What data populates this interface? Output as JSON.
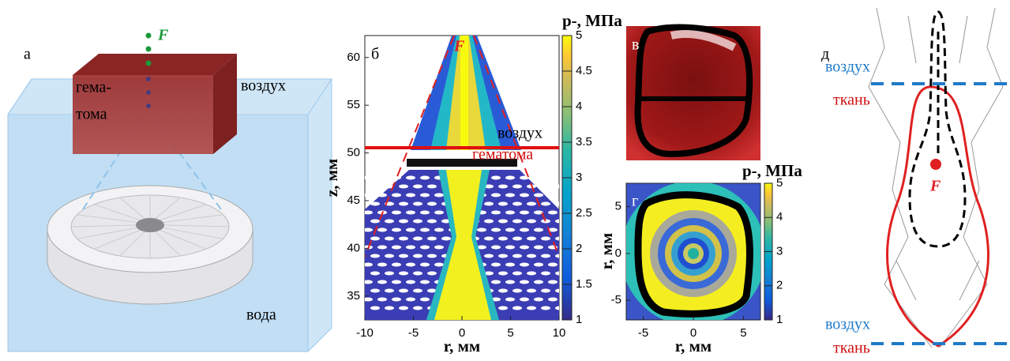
{
  "panel_a": {
    "label": "а",
    "focus": "F",
    "cube_label_line1": "гема-",
    "cube_label_line2": "тома",
    "air": "воздух",
    "water": "вода"
  },
  "panel_b": {
    "label": "б",
    "focus": "F",
    "air": "воздух",
    "hematoma": "гематома",
    "xlabel": "r, мм",
    "ylabel": "z, мм",
    "xlim": [
      -10,
      10
    ],
    "xticks": [
      -10,
      -5,
      0,
      5,
      10
    ],
    "ylim": [
      32.5,
      62.3
    ],
    "yticks": [
      35,
      40,
      45,
      50,
      55,
      60
    ],
    "colorbar": {
      "title": "p-, МПа",
      "lim": [
        1,
        5
      ],
      "ticks": [
        1,
        1.5,
        2,
        2.5,
        3,
        3.5,
        4,
        4.5,
        5
      ]
    }
  },
  "panel_v": {
    "label": "в"
  },
  "panel_g": {
    "label": "г",
    "xlabel": "r, мм",
    "ylabel": "r, мм",
    "xlim": [
      -6.7,
      6.7
    ],
    "xticks": [
      -5,
      0,
      5
    ],
    "ylim": [
      -7.1,
      7.5
    ],
    "yticks": [
      -5,
      0,
      5
    ],
    "colorbar": {
      "title": "p-, МПа",
      "lim": [
        1,
        5
      ],
      "ticks": [
        1,
        2,
        3,
        4,
        5
      ]
    }
  },
  "panel_d": {
    "label": "д",
    "air_top": "воздух",
    "tissue_top": "ткань",
    "focus": "F",
    "air_bottom": "воздух",
    "tissue_bottom": "ткань"
  }
}
